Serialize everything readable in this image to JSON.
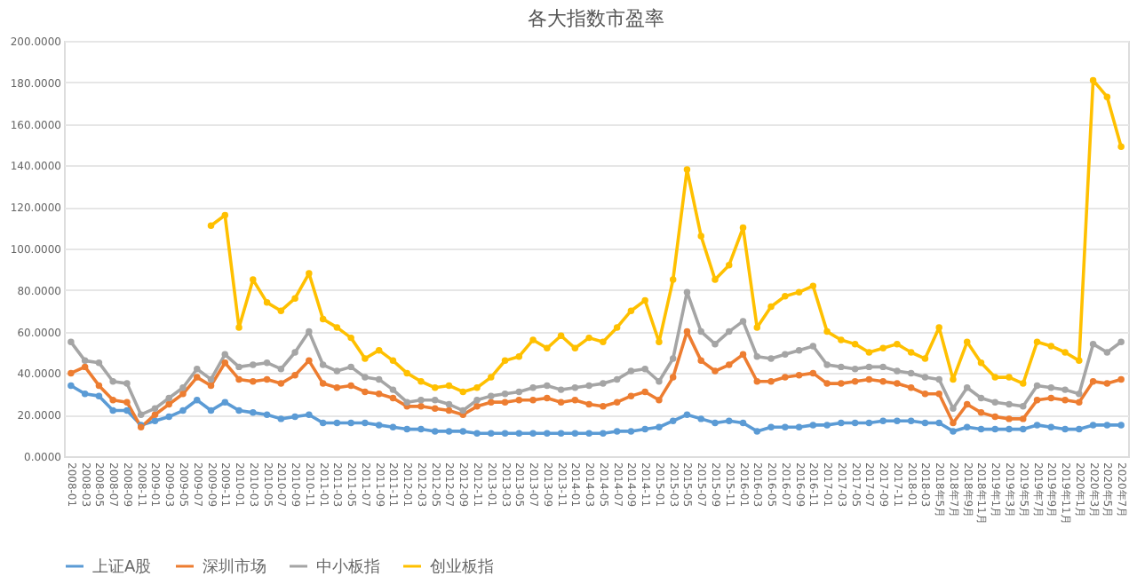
{
  "chart_data": {
    "type": "line",
    "title": "各大指数市盈率",
    "categories": [
      "2008-01",
      "2008-03",
      "2008-05",
      "2008-07",
      "2008-09",
      "2008-11",
      "2009-01",
      "2009-03",
      "2009-05",
      "2009-07",
      "2009-09",
      "2009-11",
      "2010-01",
      "2010-03",
      "2010-05",
      "2010-07",
      "2010-09",
      "2010-11",
      "2011-01",
      "2011-03",
      "2011-05",
      "2011-07",
      "2011-09",
      "2011-11",
      "2012-01",
      "2012-03",
      "2012-05",
      "2012-07",
      "2012-09",
      "2012-11",
      "2013-01",
      "2013-03",
      "2013-05",
      "2013-07",
      "2013-09",
      "2013-11",
      "2014-01",
      "2014-03",
      "2014-05",
      "2014-07",
      "2014-09",
      "2014-11",
      "2015-01",
      "2015-03",
      "2015-05",
      "2015-07",
      "2015-09",
      "2015-11",
      "2016-01",
      "2016-03",
      "2016-05",
      "2016-07",
      "2016-09",
      "2016-11",
      "2017-01",
      "2017-03",
      "2017-05",
      "2017-07",
      "2017-09",
      "2017-11",
      "2018-01",
      "2018-03",
      "2018年5月",
      "2018年7月",
      "2018年9月",
      "2018年11月",
      "2019年1月",
      "2019年3月",
      "2019年5月",
      "2019年7月",
      "2019年9月",
      "2019年11月",
      "2020年1月",
      "2020年3月",
      "2020年5月",
      "2020年7月"
    ],
    "series": [
      {
        "name": "上证A股",
        "color": "#5b9bd5",
        "values": [
          34,
          30,
          29,
          22,
          22,
          15,
          17,
          19,
          22,
          27,
          22,
          26,
          22,
          21,
          20,
          18,
          19,
          20,
          16,
          16,
          16,
          16,
          15,
          14,
          13,
          13,
          12,
          12,
          12,
          11,
          11,
          11,
          11,
          11,
          11,
          11,
          11,
          11,
          11,
          12,
          12,
          13,
          14,
          17,
          20,
          18,
          16,
          17,
          16,
          12,
          14,
          14,
          14,
          15,
          15,
          16,
          16,
          16,
          17,
          17,
          17,
          16,
          16,
          12,
          14,
          13,
          13,
          13,
          13,
          15,
          14,
          13,
          13,
          15,
          15,
          15
        ]
      },
      {
        "name": "深圳市场",
        "color": "#ed7d31",
        "values": [
          40,
          43,
          34,
          27,
          26,
          14,
          20,
          25,
          30,
          38,
          34,
          45,
          37,
          36,
          37,
          35,
          39,
          46,
          35,
          33,
          34,
          31,
          30,
          28,
          24,
          24,
          23,
          22,
          20,
          24,
          26,
          26,
          27,
          27,
          28,
          26,
          27,
          25,
          24,
          26,
          29,
          31,
          27,
          38,
          60,
          46,
          41,
          44,
          49,
          36,
          36,
          38,
          39,
          40,
          35,
          35,
          36,
          37,
          36,
          35,
          33,
          30,
          30,
          16,
          25,
          21,
          19,
          18,
          18,
          27,
          28,
          27,
          26,
          36,
          35,
          37
        ]
      },
      {
        "name": "中小板指",
        "color": "#a5a5a5",
        "values": [
          55,
          46,
          45,
          36,
          35,
          20,
          23,
          28,
          33,
          42,
          37,
          49,
          43,
          44,
          45,
          42,
          50,
          60,
          44,
          41,
          43,
          38,
          37,
          32,
          26,
          27,
          27,
          25,
          22,
          27,
          29,
          30,
          31,
          33,
          34,
          32,
          33,
          34,
          35,
          37,
          41,
          42,
          36,
          47,
          79,
          60,
          54,
          60,
          65,
          48,
          47,
          49,
          51,
          53,
          44,
          43,
          42,
          43,
          43,
          41,
          40,
          38,
          37,
          23,
          33,
          28,
          26,
          25,
          24,
          34,
          33,
          32,
          30,
          54,
          50,
          55
        ]
      },
      {
        "name": "创业板指",
        "color": "#ffc000",
        "values": [
          null,
          null,
          null,
          null,
          null,
          null,
          null,
          null,
          null,
          null,
          111,
          116,
          62,
          85,
          74,
          70,
          76,
          88,
          66,
          62,
          57,
          47,
          51,
          46,
          40,
          36,
          33,
          34,
          31,
          33,
          38,
          46,
          48,
          56,
          52,
          58,
          52,
          57,
          55,
          62,
          70,
          75,
          55,
          85,
          138,
          106,
          85,
          92,
          110,
          62,
          72,
          77,
          79,
          82,
          60,
          56,
          54,
          50,
          52,
          54,
          50,
          47,
          62,
          37,
          55,
          45,
          38,
          38,
          35,
          55,
          53,
          50,
          46,
          181,
          173,
          149
        ]
      }
    ],
    "ylim": [
      0,
      200
    ],
    "yticks": [
      {
        "value": 0,
        "label": "0.0000"
      },
      {
        "value": 20,
        "label": "20.0000"
      },
      {
        "value": 40,
        "label": "40.0000"
      },
      {
        "value": 60,
        "label": "60.0000"
      },
      {
        "value": 80,
        "label": "80.0000"
      },
      {
        "value": 100,
        "label": "100.0000"
      },
      {
        "value": 120,
        "label": "120.0000"
      },
      {
        "value": 140,
        "label": "140.0000"
      },
      {
        "value": 160,
        "label": "160.0000"
      },
      {
        "value": 180,
        "label": "180.0000"
      },
      {
        "value": 200,
        "label": "200.0000"
      }
    ],
    "grid": "y",
    "legend": "bottom",
    "marker": "circle",
    "line_style": "solid"
  }
}
